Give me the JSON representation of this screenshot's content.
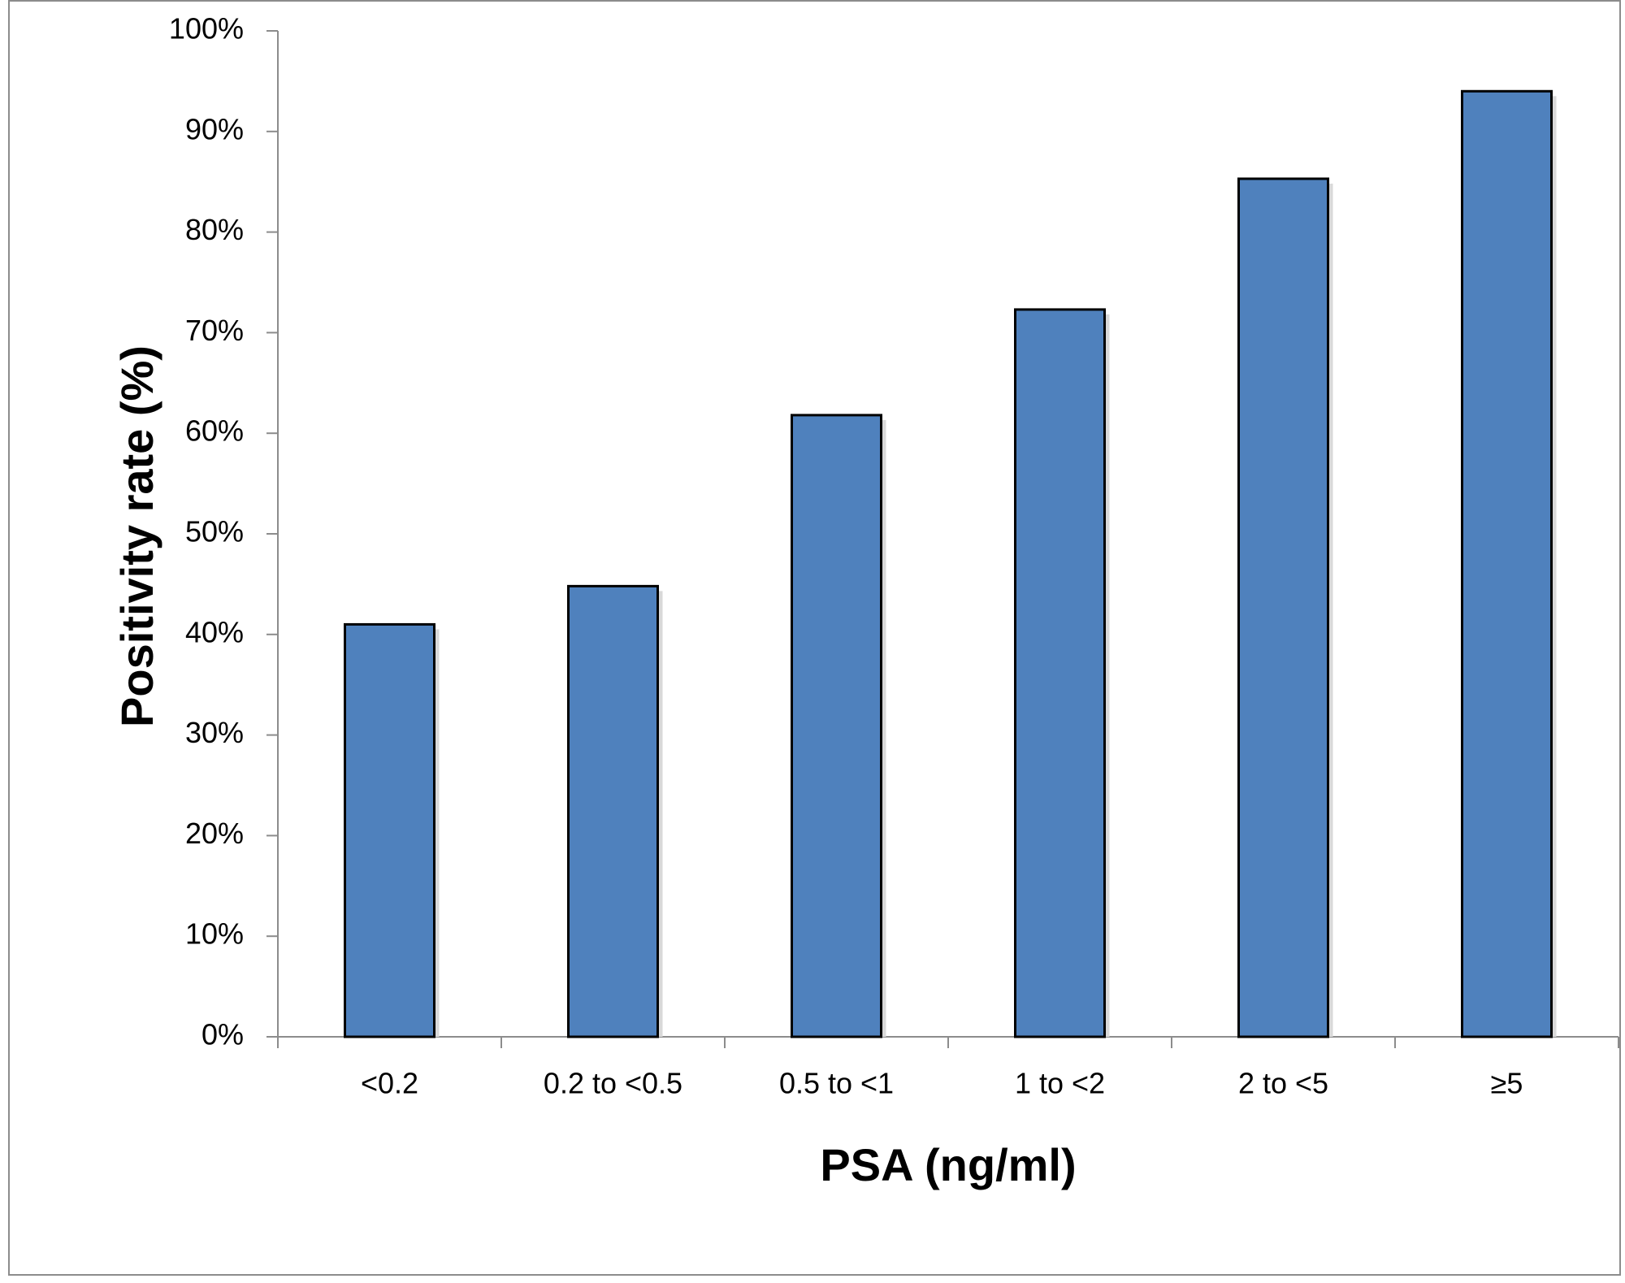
{
  "chart_data": {
    "type": "bar",
    "title": "",
    "xlabel": "PSA (ng/ml)",
    "ylabel": "Positivity rate  (%)",
    "categories": [
      "<0.2",
      "0.2 to <0.5",
      "0.5 to <1",
      "1 to <2",
      "2 to <5",
      "≥5"
    ],
    "values": [
      41,
      44.8,
      61.8,
      72.3,
      85.3,
      94
    ],
    "ylim": [
      0,
      100
    ],
    "yticks": [
      "0%",
      "10%",
      "20%",
      "30%",
      "40%",
      "50%",
      "60%",
      "70%",
      "80%",
      "90%",
      "100%"
    ],
    "grid": false,
    "legend": "none",
    "bar_color": "#4f81bd",
    "bar_edge_color": "#000000"
  }
}
